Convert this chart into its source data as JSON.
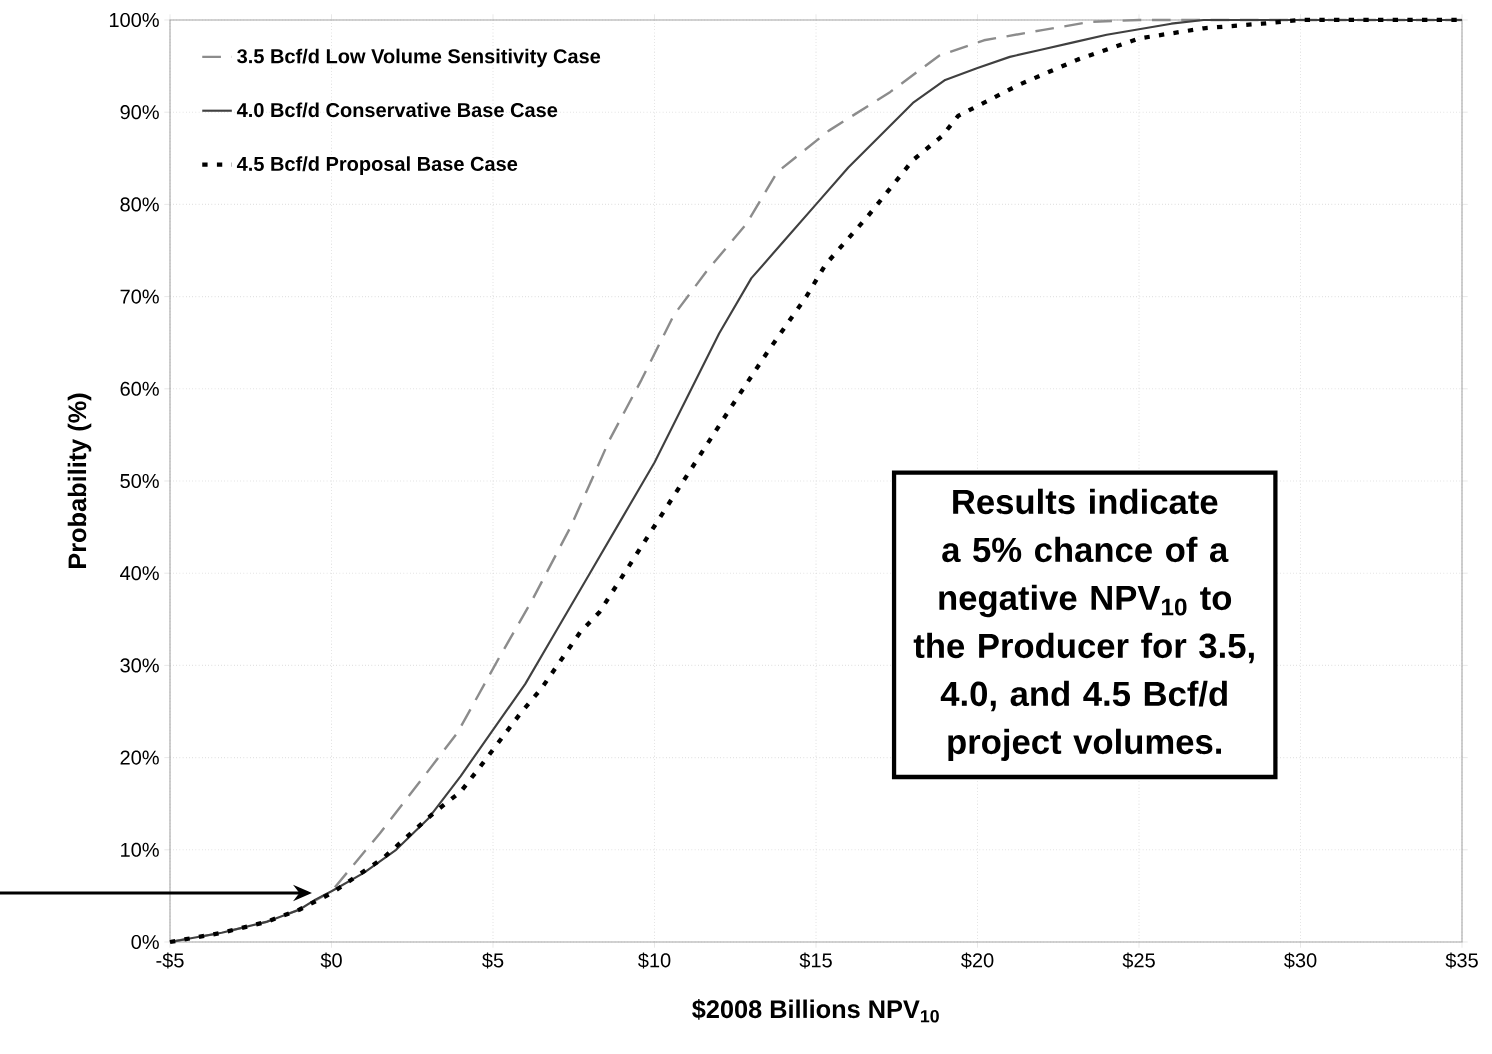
{
  "chart_data": {
    "type": "line",
    "xlabel": "$2008 Billions NPV$_{10}$",
    "ylabel": "Probability (%)",
    "xlim": [
      -5,
      35
    ],
    "xticks": [
      {
        "value": -5,
        "label": "-$5"
      },
      {
        "value": 0,
        "label": "$0"
      },
      {
        "value": 5,
        "label": "$5"
      },
      {
        "value": 10,
        "label": "$10"
      },
      {
        "value": 15,
        "label": "$15"
      },
      {
        "value": 20,
        "label": "$20"
      },
      {
        "value": 25,
        "label": "$25"
      },
      {
        "value": 30,
        "label": "$30"
      },
      {
        "value": 35,
        "label": "$35"
      }
    ],
    "ylim": [
      0,
      100
    ],
    "yticks": [
      {
        "value": 0,
        "label": "0%"
      },
      {
        "value": 10,
        "label": "10%"
      },
      {
        "value": 20,
        "label": "20%"
      },
      {
        "value": 30,
        "label": "30%"
      },
      {
        "value": 40,
        "label": "40%"
      },
      {
        "value": 50,
        "label": "50%"
      },
      {
        "value": 60,
        "label": "60%"
      },
      {
        "value": 70,
        "label": "70%"
      },
      {
        "value": 80,
        "label": "80%"
      },
      {
        "value": 90,
        "label": "90%"
      },
      {
        "value": 100,
        "label": "100%"
      }
    ],
    "grid": true,
    "legend": "top left",
    "series": [
      {
        "name": "3.5 Bcf/d Low Volume Sensitivity Case",
        "color": "#8c8c8c",
        "line_style": "dashed",
        "x": [
          -5,
          -3.4,
          -2,
          -1,
          0,
          1.5,
          2.85,
          3.9,
          5.2,
          6.2,
          7.4,
          8.6,
          9.6,
          10.6,
          11.6,
          12.85,
          13.8,
          15.4,
          17.3,
          18.8,
          20.2,
          22,
          23.5,
          25,
          35
        ],
        "values": [
          0,
          1,
          2.2,
          3.5,
          5.5,
          11.8,
          17.9,
          22.7,
          30.9,
          37,
          45,
          54.4,
          61,
          68,
          72.7,
          77.9,
          83.5,
          88,
          92.2,
          96.1,
          97.8,
          98.9,
          99.8,
          100,
          100
        ]
      },
      {
        "name": "4.0 Bcf/d Conservative Base Case",
        "color": "#404040",
        "line_style": "solid",
        "x": [
          -5,
          -3.4,
          -2,
          -1,
          -0.5,
          0,
          1,
          2,
          3,
          4,
          5,
          6,
          7,
          8,
          9,
          10,
          11,
          12,
          13,
          14,
          15,
          16,
          17,
          18,
          19,
          20,
          21,
          22,
          23,
          24,
          25,
          26,
          27,
          35
        ],
        "values": [
          0,
          1,
          2.2,
          3.5,
          4.6,
          5.5,
          7.5,
          10,
          13.4,
          18,
          23,
          28,
          34,
          40,
          46,
          52,
          59,
          66,
          72,
          76,
          80,
          84,
          87.5,
          91,
          93.5,
          94.8,
          96,
          96.8,
          97.6,
          98.4,
          99,
          99.6,
          100,
          100
        ]
      },
      {
        "name": "4.5 Bcf/d Proposal Base Case",
        "color": "#000000",
        "line_style": "dotted",
        "x": [
          -5,
          -3.4,
          -2,
          -1,
          0,
          1.6,
          3.2,
          4,
          4.6,
          5.85,
          6.5,
          7.7,
          8.3,
          10.6,
          12.35,
          13.5,
          14.7,
          15.3,
          16.6,
          18,
          18.9,
          19.4,
          21.3,
          23.1,
          25,
          27,
          28.8,
          30,
          35
        ],
        "values": [
          0,
          1,
          2.2,
          3.5,
          5.3,
          9.1,
          14.1,
          16.3,
          19,
          24.8,
          27.5,
          33.6,
          35.8,
          48.4,
          57.9,
          64,
          70,
          73.5,
          78.7,
          84.8,
          87.4,
          89.6,
          93,
          95.7,
          98,
          99.1,
          99.6,
          100,
          100
        ]
      }
    ],
    "annotations": [
      "Results indicate a 5% chance of a negative NPV$_{10}$ to the Producer for 3.5, 4.0, and 4.5 Bcf/d project volumes."
    ]
  }
}
